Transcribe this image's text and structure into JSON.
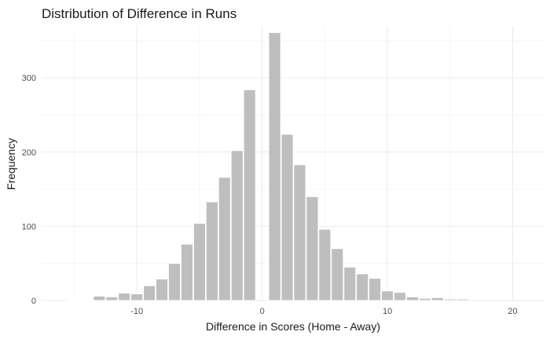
{
  "chart_data": {
    "type": "bar",
    "title": "Distribution of Difference in Runs",
    "xlabel": "Difference in Scores (Home - Away)",
    "ylabel": "Frequency",
    "xlim": [
      -17.6,
      22.6
    ],
    "ylim": [
      0,
      370
    ],
    "x_ticks": [
      -10,
      0,
      10,
      20
    ],
    "x_tick_labels": [
      "-10",
      "0",
      "10",
      "20"
    ],
    "y_ticks": [
      0,
      100,
      200,
      300
    ],
    "y_tick_labels": [
      "0",
      "100",
      "200",
      "300"
    ],
    "grid": true,
    "bar_color": "#bebebe",
    "bin_width": 0.95,
    "bins": [
      {
        "x": -15,
        "value": 1
      },
      {
        "x": -14,
        "value": 1
      },
      {
        "x": -13,
        "value": 6
      },
      {
        "x": -12,
        "value": 5
      },
      {
        "x": -11,
        "value": 10
      },
      {
        "x": -10,
        "value": 9
      },
      {
        "x": -9,
        "value": 20
      },
      {
        "x": -8,
        "value": 29
      },
      {
        "x": -7,
        "value": 50
      },
      {
        "x": -6,
        "value": 76
      },
      {
        "x": -5,
        "value": 104
      },
      {
        "x": -4,
        "value": 133
      },
      {
        "x": -3,
        "value": 166
      },
      {
        "x": -2,
        "value": 202
      },
      {
        "x": -1,
        "value": 284
      },
      {
        "x": 0,
        "value": 0
      },
      {
        "x": 1,
        "value": 361
      },
      {
        "x": 2,
        "value": 224
      },
      {
        "x": 3,
        "value": 183
      },
      {
        "x": 4,
        "value": 140
      },
      {
        "x": 5,
        "value": 96
      },
      {
        "x": 6,
        "value": 70
      },
      {
        "x": 7,
        "value": 45
      },
      {
        "x": 8,
        "value": 36
      },
      {
        "x": 9,
        "value": 30
      },
      {
        "x": 10,
        "value": 13
      },
      {
        "x": 11,
        "value": 11
      },
      {
        "x": 12,
        "value": 5
      },
      {
        "x": 13,
        "value": 3
      },
      {
        "x": 14,
        "value": 4
      },
      {
        "x": 15,
        "value": 2
      },
      {
        "x": 16,
        "value": 2
      }
    ]
  }
}
